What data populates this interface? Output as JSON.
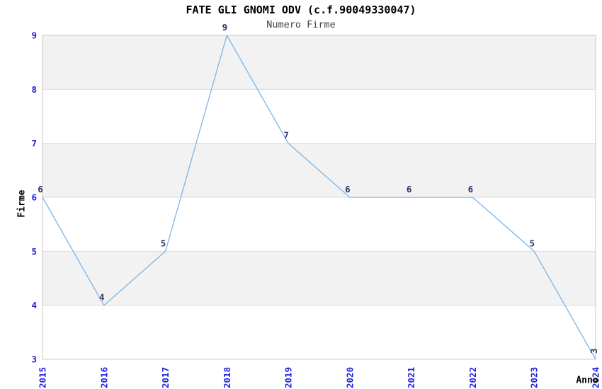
{
  "chart_data": {
    "type": "line",
    "title": "FATE GLI GNOMI ODV (c.f.90049330047)",
    "subtitle": "Numero Firme",
    "xlabel": "Anno",
    "ylabel": "Firme",
    "categories": [
      "2015",
      "2016",
      "2017",
      "2018",
      "2019",
      "2020",
      "2021",
      "2022",
      "2023",
      "2024"
    ],
    "values": [
      6,
      4,
      5,
      9,
      7,
      6,
      6,
      6,
      5,
      3
    ],
    "ylim": [
      3,
      9
    ],
    "yticks": [
      3,
      4,
      5,
      6,
      7,
      8,
      9
    ],
    "grid": true,
    "legend_position": "none",
    "band_fill": "striped-horizontal",
    "colors": {
      "line": "#7cb5e8",
      "tick_label": "#2020dd",
      "data_label": "#333366",
      "band": "#f2f2f2",
      "grid": "#dcdcdc",
      "border": "#c8c8c8",
      "title": "#000000",
      "subtitle": "#444444",
      "axis_label": "#000000"
    }
  }
}
